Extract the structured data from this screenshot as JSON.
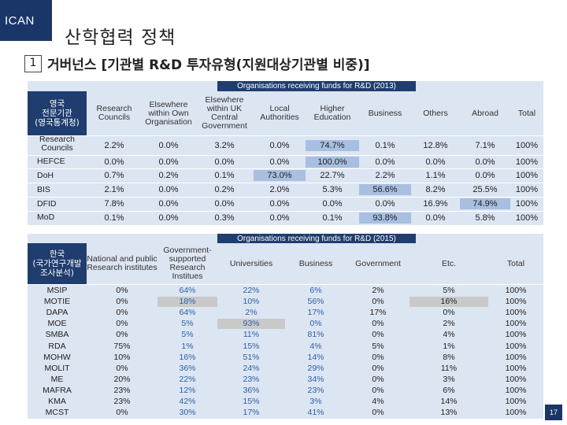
{
  "logo": "ICAN",
  "page_title": "산학협력 정책",
  "section": {
    "number": "1",
    "title": "거버넌스 [기관별 R&D 투자유형(지원대상기관별 비중)]"
  },
  "uk": {
    "banner": "Organisations receiving funds for R&D (2013)",
    "corner_label": "영국\n전문기관\n(영국통계청)",
    "columns": [
      "Research Councils",
      "Elsewhere within Own Organisation",
      "Elsewhere within UK Central Government",
      "Local Authorities",
      "Higher Education",
      "Business",
      "Others",
      "Abroad",
      "Total"
    ],
    "rows": [
      {
        "label": "Research Councils",
        "values": [
          "2.2%",
          "0.0%",
          "3.2%",
          "0.0%",
          "74.7%",
          "0.1%",
          "12.8%",
          "7.1%",
          "100%"
        ]
      },
      {
        "label": "HEFCE",
        "values": [
          "0.0%",
          "0.0%",
          "0.0%",
          "0.0%",
          "100.0%",
          "0.0%",
          "0.0%",
          "0.0%",
          "100%"
        ]
      },
      {
        "label": "DoH",
        "values": [
          "0.7%",
          "0.2%",
          "0.1%",
          "73.0%",
          "22.7%",
          "2.2%",
          "1.1%",
          "0.0%",
          "100%"
        ]
      },
      {
        "label": "BIS",
        "values": [
          "2.1%",
          "0.0%",
          "0.2%",
          "2.0%",
          "5.3%",
          "56.6%",
          "8.2%",
          "25.5%",
          "100%"
        ]
      },
      {
        "label": "DFID",
        "values": [
          "7.8%",
          "0.0%",
          "0.0%",
          "0.0%",
          "0.0%",
          "0.0%",
          "16.9%",
          "74.9%",
          "100%"
        ]
      },
      {
        "label": "MoD",
        "values": [
          "0.1%",
          "0.0%",
          "0.3%",
          "0.0%",
          "0.1%",
          "93.8%",
          "0.0%",
          "5.8%",
          "100%"
        ]
      }
    ]
  },
  "kr": {
    "banner": "Organisations receiving funds for R&D (2015)",
    "corner_label": "한국\n(국가연구개발\n조사분석)",
    "columns": [
      "National and public Research institutes",
      "Government-supported Research Institues",
      "Universities",
      "Business",
      "Government",
      "Etc.",
      "Total"
    ],
    "rows": [
      {
        "label": "MSIP",
        "values": [
          "0%",
          "64%",
          "22%",
          "6%",
          "2%",
          "5%",
          "100%"
        ]
      },
      {
        "label": "MOTIE",
        "values": [
          "0%",
          "18%",
          "10%",
          "56%",
          "0%",
          "16%",
          "100%"
        ]
      },
      {
        "label": "DAPA",
        "values": [
          "0%",
          "64%",
          "2%",
          "17%",
          "17%",
          "0%",
          "100%"
        ]
      },
      {
        "label": "MOE",
        "values": [
          "0%",
          "5%",
          "93%",
          "0%",
          "0%",
          "2%",
          "100%"
        ]
      },
      {
        "label": "SMBA",
        "values": [
          "0%",
          "5%",
          "11%",
          "81%",
          "0%",
          "4%",
          "100%"
        ]
      },
      {
        "label": "RDA",
        "values": [
          "75%",
          "1%",
          "15%",
          "4%",
          "5%",
          "1%",
          "100%"
        ]
      },
      {
        "label": "MOHW",
        "values": [
          "10%",
          "16%",
          "51%",
          "14%",
          "0%",
          "8%",
          "100%"
        ]
      },
      {
        "label": "MOLIT",
        "values": [
          "0%",
          "36%",
          "24%",
          "29%",
          "0%",
          "11%",
          "100%"
        ]
      },
      {
        "label": "ME",
        "values": [
          "20%",
          "22%",
          "23%",
          "34%",
          "0%",
          "3%",
          "100%"
        ]
      },
      {
        "label": "MAFRA",
        "values": [
          "23%",
          "12%",
          "36%",
          "23%",
          "0%",
          "6%",
          "100%"
        ]
      },
      {
        "label": "KMA",
        "values": [
          "23%",
          "42%",
          "15%",
          "3%",
          "4%",
          "14%",
          "100%"
        ]
      },
      {
        "label": "MCST",
        "values": [
          "0%",
          "30%",
          "17%",
          "41%",
          "0%",
          "13%",
          "100%"
        ]
      }
    ]
  },
  "page_number": "17"
}
